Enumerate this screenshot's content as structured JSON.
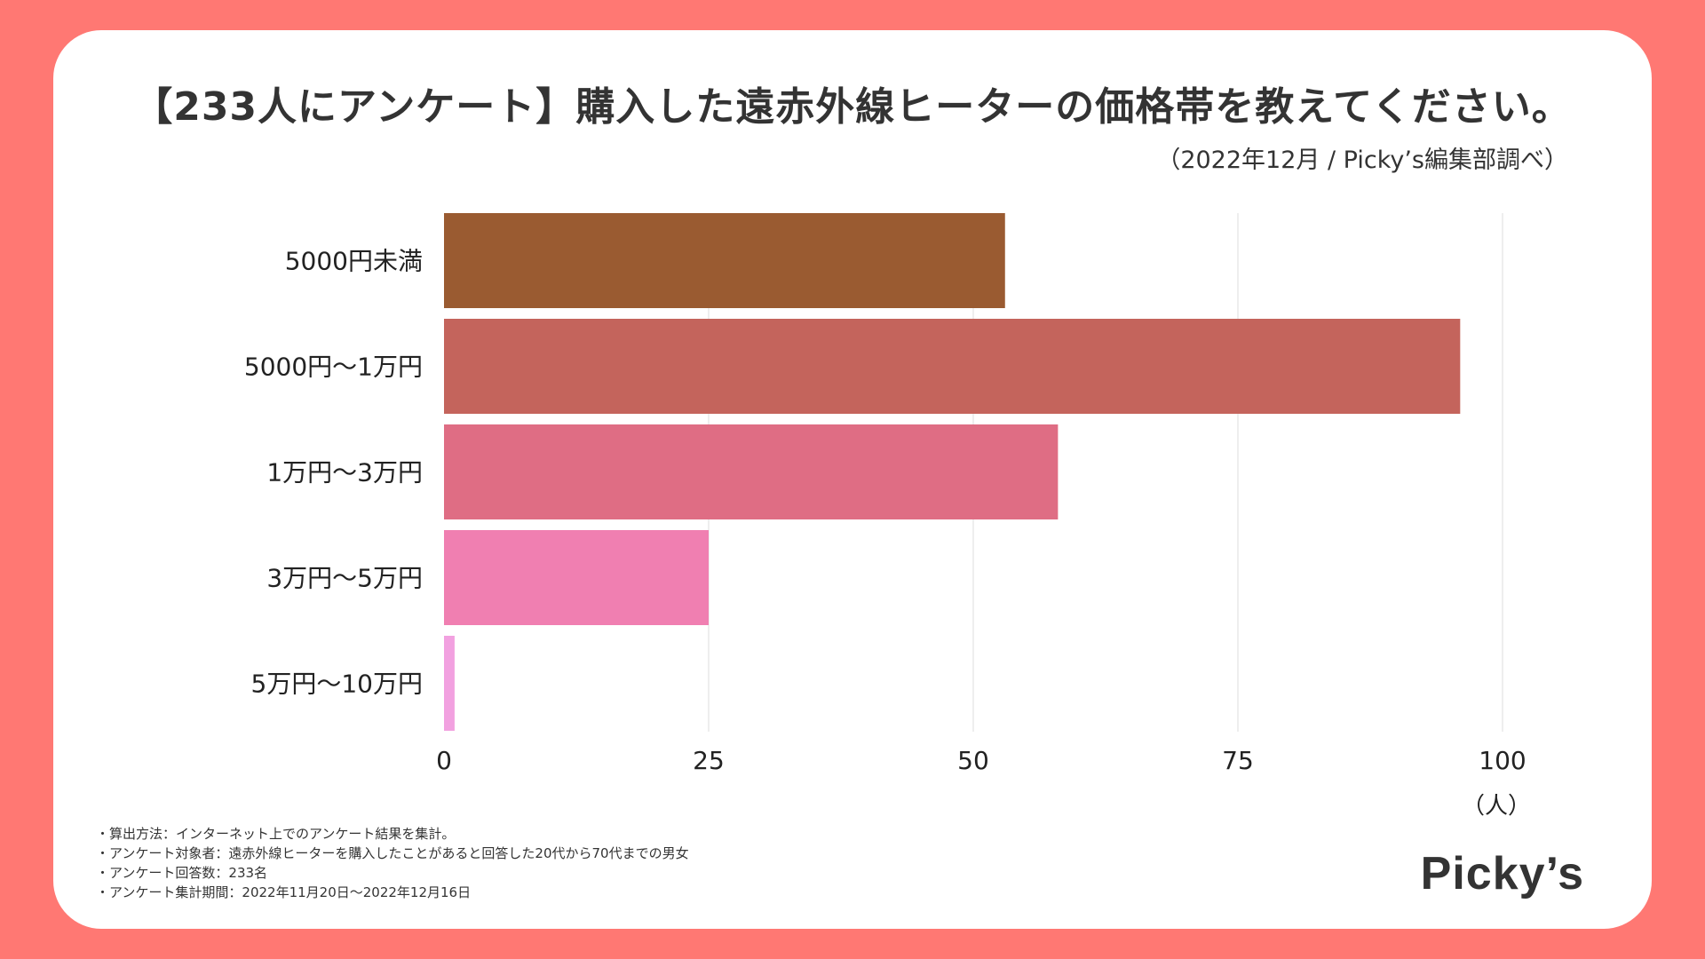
{
  "chart_data": {
    "type": "bar",
    "orientation": "horizontal",
    "title": "【233人にアンケート】購入した遠赤外線ヒーターの価格帯を教えてください。",
    "subtitle": "（2022年12月 / Picky’s編集部調べ）",
    "categories": [
      "5000円未満",
      "5000円〜1万円",
      "1万円〜3万円",
      "3万円〜5万円",
      "5万円〜10万円"
    ],
    "values": [
      53,
      96,
      58,
      25,
      1
    ],
    "colors": [
      "#9a5b31",
      "#c4645c",
      "#df6d84",
      "#f07fb1",
      "#f2a1e0"
    ],
    "xlim": [
      0,
      100
    ],
    "xticks": [
      "0",
      "25",
      "50",
      "75",
      "100"
    ],
    "xlabel": "（人）",
    "grid": true
  },
  "notes": [
    "・算出方法：インターネット上でのアンケート結果を集計。",
    "・アンケート対象者：遠赤外線ヒーターを購入したことがあると回答した20代から70代までの男女",
    "・アンケート回答数：233名",
    "・アンケート集計期間：2022年11月20日〜2022年12月16日"
  ],
  "brand": {
    "logo_text": "Picky’s",
    "background_color": "#ff7873"
  }
}
